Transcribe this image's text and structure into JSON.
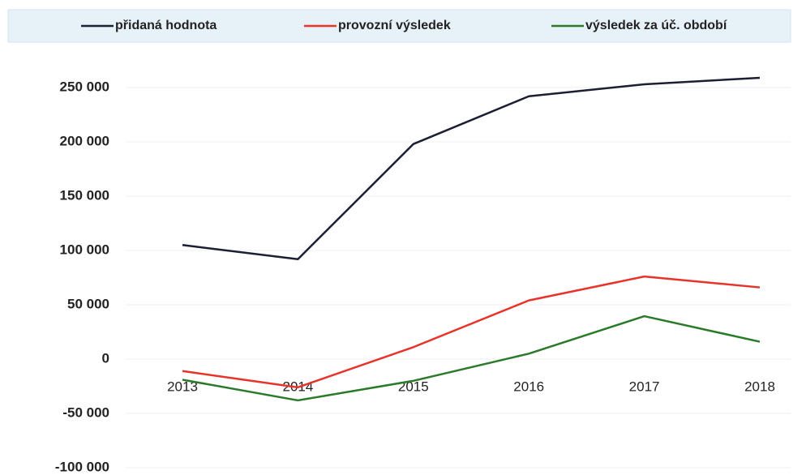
{
  "chart_data": {
    "type": "line",
    "categories": [
      "2013",
      "2014",
      "2015",
      "2016",
      "2017",
      "2018"
    ],
    "series": [
      {
        "name": "přidaná hodnota",
        "color": "#1a1f33",
        "values": [
          105000,
          92000,
          198000,
          242000,
          253000,
          259000
        ]
      },
      {
        "name": "provozní výsledek",
        "color": "#e8332a",
        "values": [
          -11000,
          -26000,
          11000,
          54000,
          76000,
          66000
        ]
      },
      {
        "name": "výsledek za úč. období",
        "color": "#2a7a2a",
        "values": [
          -19000,
          -38000,
          -20000,
          5000,
          39500,
          16000
        ]
      }
    ],
    "ylim": [
      -100000,
      250000
    ],
    "yticks": [
      {
        "value": -100000,
        "label": "-100 000"
      },
      {
        "value": -50000,
        "label": "-50 000"
      },
      0,
      {
        "value": 50000,
        "label": "50 000"
      },
      {
        "value": 100000,
        "label": "100 000"
      },
      {
        "value": 150000,
        "label": "150 000"
      },
      {
        "value": 200000,
        "label": "200 000"
      },
      {
        "value": 250000,
        "label": "250 000"
      }
    ],
    "grid": true,
    "legend": "top"
  }
}
